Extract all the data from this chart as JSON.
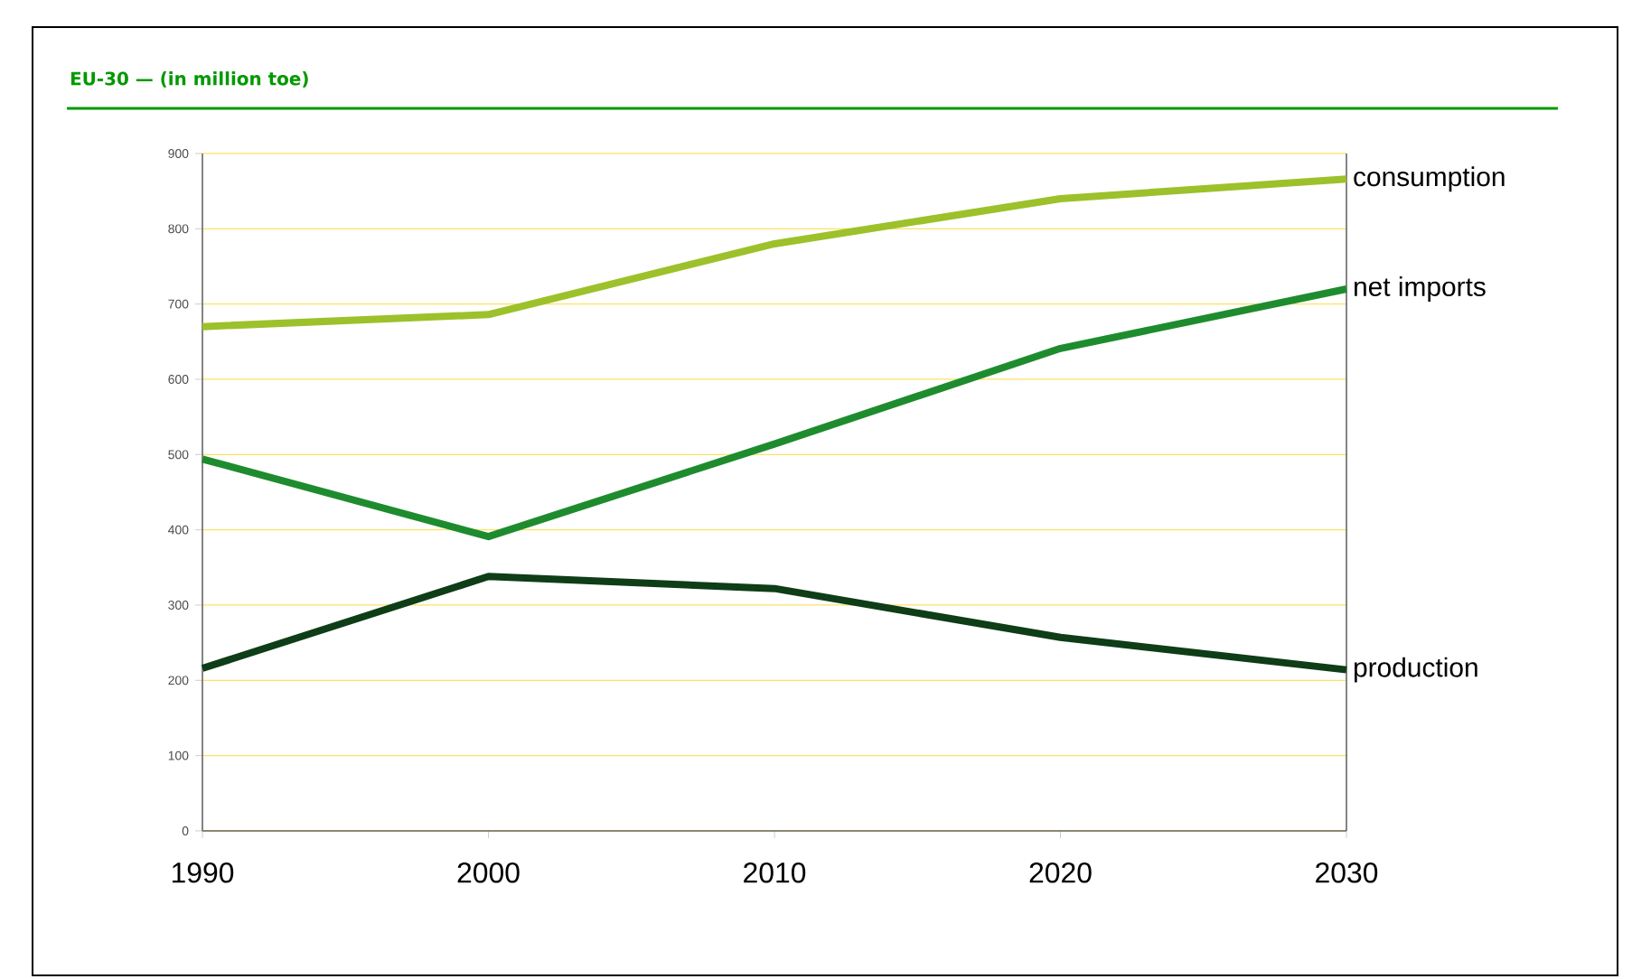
{
  "chart_data": {
    "type": "line",
    "title": "EU-30 — (in million toe)",
    "categories": [
      "1990",
      "2000",
      "2010",
      "2020",
      "2030"
    ],
    "series": [
      {
        "name": "consumption",
        "color": "#9cc12b",
        "values": [
          670,
          686,
          780,
          840,
          866
        ]
      },
      {
        "name": "net imports",
        "color": "#1e8c2e",
        "values": [
          494,
          391,
          514,
          641,
          720
        ]
      },
      {
        "name": "production",
        "color": "#0e3d17",
        "values": [
          216,
          338,
          322,
          257,
          214
        ]
      }
    ],
    "ylim": [
      0,
      900
    ],
    "yticks": [
      0,
      100,
      200,
      300,
      400,
      500,
      600,
      700,
      800,
      900
    ],
    "grid": "y",
    "legend": false,
    "marker": "none",
    "line_style": "solid"
  }
}
